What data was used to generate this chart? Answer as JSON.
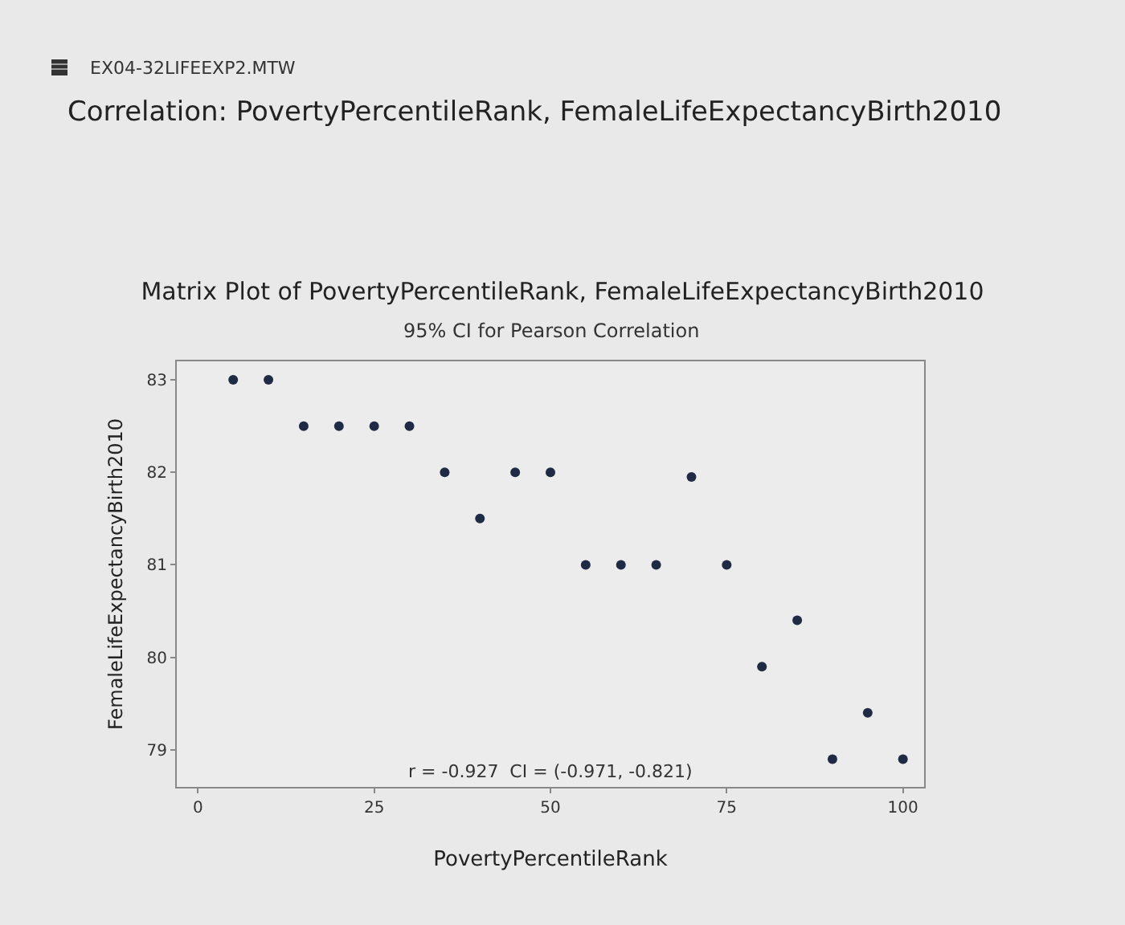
{
  "chart_data": {
    "type": "scatter",
    "title": "Matrix Plot of PovertyPercentileRank, FemaleLifeExpectancyBirth2010",
    "subtitle": "95% CI for Pearson Correlation",
    "xlabel": "PovertyPercentileRank",
    "ylabel": "FemaleLifeExpectancyBirth2010",
    "annotations": [
      "EX04-32LIFEEXP2.MTW",
      "Correlation: PovertyPercentileRank, FemaleLifeExpectancyBirth2010",
      "r = -0.927  CI = (-0.971, -0.821)"
    ],
    "x": [
      5,
      10,
      15,
      20,
      25,
      30,
      35,
      40,
      45,
      50,
      55,
      60,
      65,
      70,
      75,
      80,
      85,
      90,
      95,
      100
    ],
    "series": [
      {
        "color": "#1f2a44",
        "values": [
          83,
          83,
          82.5,
          82.5,
          82.5,
          82.5,
          82,
          81.5,
          82,
          82,
          81,
          81,
          81,
          81.95,
          81,
          79.9,
          80.4,
          78.9,
          79.4,
          78.9
        ]
      }
    ],
    "xlim": [
      -3,
      103
    ],
    "xticks": [
      0,
      25,
      50,
      75,
      100
    ],
    "ylim": [
      78.6,
      83.2
    ],
    "yticks": [
      79,
      80,
      81,
      82,
      83
    ],
    "grid": false,
    "legend": false,
    "marker": "circle"
  }
}
